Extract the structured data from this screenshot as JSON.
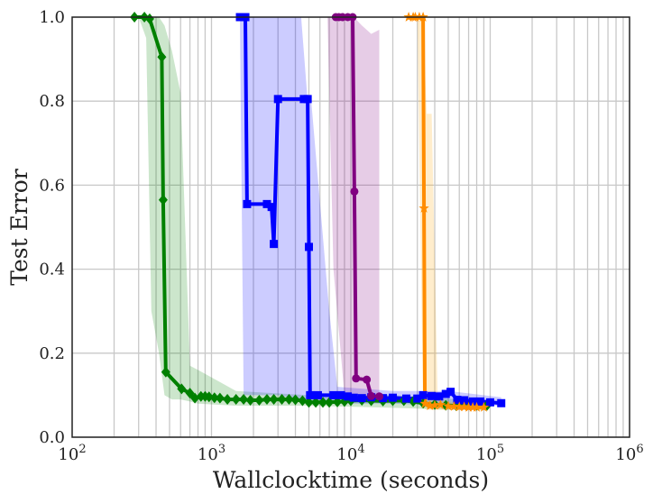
{
  "chart_data": {
    "type": "line",
    "xlabel": "Wallclocktime (seconds)",
    "ylabel": "Test Error",
    "xscale": "log",
    "xlim": [
      100,
      1000000
    ],
    "ylim": [
      0.0,
      1.0
    ],
    "grid": true,
    "x_ticks": [
      {
        "value": 100,
        "base": "10",
        "exp": "2"
      },
      {
        "value": 1000,
        "base": "10",
        "exp": "3"
      },
      {
        "value": 10000,
        "base": "10",
        "exp": "4"
      },
      {
        "value": 100000,
        "base": "10",
        "exp": "5"
      },
      {
        "value": 1000000,
        "base": "10",
        "exp": "6"
      }
    ],
    "y_ticks": [
      {
        "value": 0.0,
        "label": "0.0"
      },
      {
        "value": 0.2,
        "label": "0.2"
      },
      {
        "value": 0.4,
        "label": "0.4"
      },
      {
        "value": 0.6,
        "label": "0.6"
      },
      {
        "value": 0.8,
        "label": "0.8"
      },
      {
        "value": 1.0,
        "label": "1.0"
      }
    ],
    "series": [
      {
        "color": "#008000",
        "band_color": "#008000",
        "marker": "diamond",
        "x": [
          280,
          330,
          360,
          440,
          450,
          470,
          610,
          700,
          760,
          840,
          900,
          960,
          1050,
          1150,
          1300,
          1500,
          1700,
          1900,
          2200,
          2500,
          2800,
          3200,
          3600,
          4000,
          4500,
          5000,
          5600,
          6300,
          7000,
          8000,
          9000,
          10000,
          12000,
          14000,
          17000,
          20000,
          24000,
          28000,
          33000,
          40000,
          48000,
          57000,
          68000,
          80000,
          95000
        ],
        "y": [
          1.0,
          1.0,
          0.996,
          0.905,
          0.565,
          0.155,
          0.115,
          0.105,
          0.093,
          0.097,
          0.097,
          0.096,
          0.094,
          0.093,
          0.09,
          0.09,
          0.09,
          0.088,
          0.088,
          0.09,
          0.09,
          0.09,
          0.09,
          0.089,
          0.087,
          0.083,
          0.083,
          0.083,
          0.083,
          0.084,
          0.085,
          0.087,
          0.088,
          0.087,
          0.086,
          0.087,
          0.087,
          0.085,
          0.081,
          0.078,
          0.076,
          0.075,
          0.076,
          0.076,
          0.076
        ],
        "band_x": [
          300,
          340,
          370,
          420,
          460,
          520,
          600,
          700,
          800,
          1500,
          5000,
          20000,
          60000,
          95000
        ],
        "band_upper": [
          1.0,
          1.0,
          1.0,
          1.0,
          0.98,
          0.92,
          0.82,
          0.17,
          0.16,
          0.11,
          0.1,
          0.1,
          0.09,
          0.09
        ],
        "band_lower": [
          1.0,
          0.95,
          0.3,
          0.2,
          0.1,
          0.09,
          0.09,
          0.085,
          0.08,
          0.075,
          0.075,
          0.07,
          0.065,
          0.065
        ]
      },
      {
        "color": "#0000ff",
        "band_color": "#0000ff",
        "marker": "square",
        "x": [
          1600,
          1750,
          1800,
          2500,
          2700,
          2800,
          3000,
          4600,
          4900,
          5000,
          5100,
          5800,
          7500,
          8500,
          9500,
          10500,
          12000,
          14000,
          17000,
          20000,
          25000,
          30000,
          33000,
          38000,
          43000,
          48000,
          52000,
          58000,
          65000,
          75000,
          85000,
          100000,
          120000
        ],
        "y": [
          1.0,
          1.0,
          0.555,
          0.555,
          0.548,
          0.46,
          0.805,
          0.805,
          0.805,
          0.453,
          0.1,
          0.1,
          0.1,
          0.1,
          0.097,
          0.094,
          0.093,
          0.095,
          0.093,
          0.094,
          0.092,
          0.092,
          0.1,
          0.098,
          0.097,
          0.103,
          0.108,
          0.089,
          0.088,
          0.085,
          0.085,
          0.083,
          0.081
        ],
        "band_x": [
          1500,
          1600,
          1700,
          3000,
          4400,
          4900,
          5200,
          7000,
          8000,
          20000,
          50000,
          120000
        ],
        "band_upper": [
          1.0,
          1.0,
          1.0,
          1.0,
          1.0,
          0.8,
          0.8,
          0.3,
          0.12,
          0.11,
          0.11,
          0.095
        ],
        "band_lower": [
          1.0,
          1.0,
          0.1,
          0.1,
          0.09,
          0.08,
          0.08,
          0.08,
          0.08,
          0.08,
          0.075,
          0.075
        ]
      },
      {
        "color": "#800080",
        "band_color": "#800080",
        "marker": "circle",
        "x": [
          7800,
          8200,
          8700,
          9500,
          10300,
          10600,
          10900,
          13000,
          14000,
          16000
        ],
        "y": [
          1.0,
          1.0,
          1.0,
          1.0,
          1.0,
          0.585,
          0.14,
          0.137,
          0.098,
          0.097
        ],
        "band_x": [
          6800,
          7500,
          9000,
          10500,
          12000,
          14000,
          16000
        ],
        "band_upper": [
          1.0,
          1.0,
          1.0,
          1.0,
          0.98,
          0.96,
          0.97
        ],
        "band_lower": [
          1.0,
          0.4,
          0.1,
          0.1,
          0.09,
          0.09,
          0.09
        ]
      },
      {
        "color": "#ff8c00",
        "band_color": "#ffa500",
        "marker": "star",
        "x": [
          26000,
          28000,
          29000,
          31000,
          33000,
          33500,
          34000,
          37000,
          40000,
          44000,
          50000,
          55000,
          60000,
          65000,
          70000,
          75000,
          80000,
          90000
        ],
        "y": [
          1.0,
          1.0,
          1.0,
          1.0,
          1.0,
          0.545,
          0.08,
          0.075,
          0.076,
          0.077,
          0.074,
          0.073,
          0.072,
          0.072,
          0.071,
          0.071,
          0.071,
          0.071
        ],
        "band_x": [
          25000,
          30000,
          33000,
          35000,
          38000,
          42000,
          48000,
          90000
        ],
        "band_upper": [
          1.0,
          1.0,
          1.0,
          0.77,
          0.77,
          0.09,
          0.085,
          0.08
        ],
        "band_lower": [
          1.0,
          1.0,
          0.07,
          0.065,
          0.065,
          0.065,
          0.065,
          0.065
        ]
      }
    ]
  }
}
